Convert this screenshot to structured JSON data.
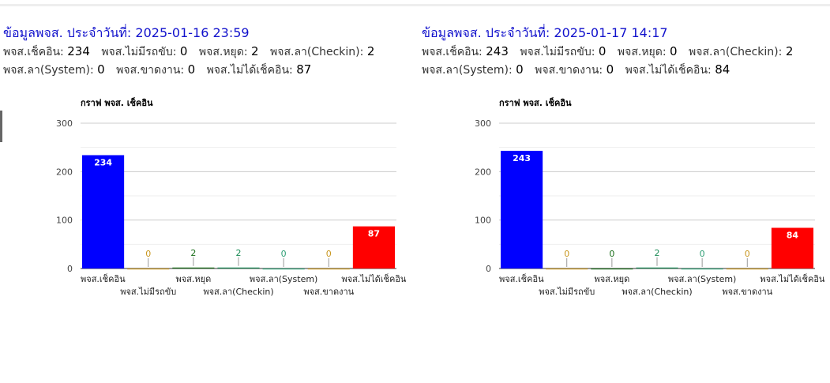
{
  "panels": [
    {
      "title": "ข้อมูลพจส. ประจำวันที่: 2025-01-16 23:59",
      "stats_row1": [
        {
          "label": "พจส.เช็คอิน:",
          "value": "234"
        },
        {
          "label": "พจส.ไม่มีรถขับ:",
          "value": "0"
        },
        {
          "label": "พจส.หยุด:",
          "value": "2"
        },
        {
          "label": "พจส.ลา(Checkin):",
          "value": "2"
        }
      ],
      "stats_row2": [
        {
          "label": "พจส.ลา(System):",
          "value": "0"
        },
        {
          "label": "พจส.ขาดงาน:",
          "value": "0"
        },
        {
          "label": "พจส.ไม่ได้เช็คอิน:",
          "value": "87"
        }
      ],
      "chart_data": {
        "type": "bar",
        "title": "กราฟ พจส. เช็คอิน",
        "categories": [
          "พจส.เช็คอิน",
          "พจส.ไม่มีรถขับ",
          "พจส.หยุด",
          "พจส.ลา(Checkin)",
          "พจส.ลา(System)",
          "พจส.ขาดงาน",
          "พจส.ไม่ได้เช็คอิน"
        ],
        "values": [
          234,
          0,
          2,
          2,
          0,
          0,
          87
        ],
        "value_labels": [
          "234",
          "0",
          "2",
          "2",
          "0",
          "0",
          "87"
        ],
        "colors": [
          "#0000ff",
          "#c8961e",
          "#1a6e1a",
          "#1a8a55",
          "#2e9e74",
          "#c8961e",
          "#ff0000"
        ],
        "ylim": [
          0,
          300
        ],
        "yticks": [
          0,
          100,
          200,
          300
        ],
        "grid": true
      }
    },
    {
      "title": "ข้อมูลพจส. ประจำวันที่: 2025-01-17 14:17",
      "stats_row1": [
        {
          "label": "พจส.เช็คอิน:",
          "value": "243"
        },
        {
          "label": "พจส.ไม่มีรถขับ:",
          "value": "0"
        },
        {
          "label": "พจส.หยุด:",
          "value": "0"
        },
        {
          "label": "พจส.ลา(Checkin):",
          "value": "2"
        }
      ],
      "stats_row2": [
        {
          "label": "พจส.ลา(System):",
          "value": "0"
        },
        {
          "label": "พจส.ขาดงาน:",
          "value": "0"
        },
        {
          "label": "พจส.ไม่ได้เช็คอิน:",
          "value": "84"
        }
      ],
      "chart_data": {
        "type": "bar",
        "title": "กราฟ พจส. เช็คอิน",
        "categories": [
          "พจส.เช็คอิน",
          "พจส.ไม่มีรถขับ",
          "พจส.หยุด",
          "พจส.ลา(Checkin)",
          "พจส.ลา(System)",
          "พจส.ขาดงาน",
          "พจส.ไม่ได้เช็คอิน"
        ],
        "values": [
          243,
          0,
          0,
          2,
          0,
          0,
          84
        ],
        "value_labels": [
          "243",
          "0",
          "0",
          "2",
          "0",
          "0",
          "84"
        ],
        "colors": [
          "#0000ff",
          "#c8961e",
          "#1a6e1a",
          "#1a8a55",
          "#2e9e74",
          "#c8961e",
          "#ff0000"
        ],
        "ylim": [
          0,
          300
        ],
        "yticks": [
          0,
          100,
          200,
          300
        ],
        "grid": true
      }
    }
  ]
}
